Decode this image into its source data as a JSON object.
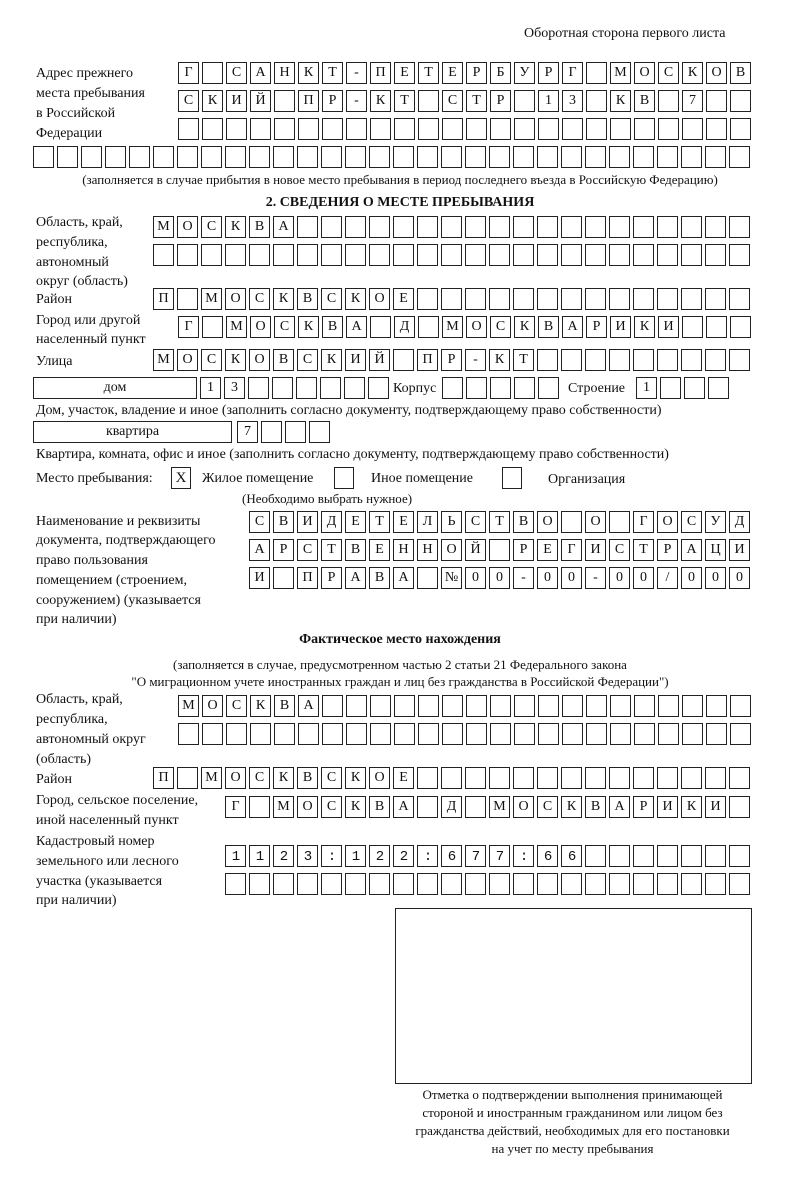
{
  "header": {
    "title": "Оборотная сторона первого листа"
  },
  "previous_address": {
    "label_lines": [
      "Адрес прежнего",
      "места пребывания",
      "в Российской",
      "Федерации"
    ],
    "rows": [
      "Г САНКТ-ПЕТЕРБУРГ МОСКОВ",
      "СКИЙ ПР-КТ СТР 13 КВ 7",
      "",
      ""
    ],
    "note": "(заполняется в случае прибытия в новое место пребывания в период последнего въезда в Российскую Федерацию)"
  },
  "section2": {
    "title": "2. СВЕДЕНИЯ О МЕСТЕ ПРЕБЫВАНИЯ",
    "region_label_lines": [
      "Область, край,",
      "республика,",
      "автономный",
      "округ (область)"
    ],
    "region_rows": [
      "МОСКВА",
      ""
    ],
    "district_label": "Район",
    "district": "П МОСКВСКОЕ",
    "city_label_lines": [
      "Город или другой",
      "населенный пункт"
    ],
    "city": "Г МОСКВА Д МОСКВАРИКИ",
    "street_label": "Улица",
    "street": "МОСКОВСКИЙ ПР-КТ",
    "house_type": "дом",
    "house_number": "13",
    "building_label": "Корпус",
    "building": "",
    "structure_label": "Строение",
    "structure": "1",
    "house_note": "Дом, участок, владение и иное (заполнить согласно документу, подтверждающему право собственности)",
    "apartment_type": "квартира",
    "apartment_number": "7",
    "apartment_note": "Квартира, комната, офис и иное (заполнить согласно документу, подтверждающему право собственности)",
    "stay_place_label": "Место пребывания:",
    "stay_options": [
      {
        "label": "Жилое помещение",
        "checked": true,
        "mark": "X"
      },
      {
        "label": "Иное помещение",
        "checked": false,
        "mark": ""
      },
      {
        "label": "Организация",
        "checked": false,
        "mark": ""
      }
    ],
    "stay_note": "(Необходимо выбрать нужное)",
    "document_label_lines": [
      "Наименование и реквизиты",
      "документа, подтверждающего",
      "право пользования",
      "помещением (строением,",
      "сооружением) (указывается",
      "при наличии)"
    ],
    "document_rows": [
      "СВИДЕТЕЛЬСТВО О ГОСУД",
      "АРСТВЕННОЙ РЕГИСТРАЦИ",
      "И ПРАВА №00-00-00/000"
    ]
  },
  "actual_location": {
    "title": "Фактическое место нахождения",
    "note_lines": [
      "(заполняется в случае, предусмотренном частью 2 статьи 21 Федерального закона",
      "\"О миграционном учете иностранных граждан и лиц без гражданства в Российской Федерации\")"
    ],
    "region_label_lines": [
      "Область, край,",
      "республика,",
      "автономный округ",
      "(область)"
    ],
    "region_rows": [
      "МОСКВА",
      ""
    ],
    "district_label": "Район",
    "district": "П МОСКВСКОЕ",
    "city_label_lines": [
      "Город, сельское поселение,",
      "иной населенный пункт"
    ],
    "city": "Г МОСКВА Д МОСКВАРИКИ",
    "cadastral_label_lines": [
      "Кадастровый номер",
      "земельного или лесного",
      "участка (указывается",
      "при наличии)"
    ],
    "cadastral_rows": [
      "1123:122:677:66",
      ""
    ]
  },
  "confirmation": {
    "caption_lines": [
      "Отметка о подтверждении выполнения принимающей",
      "стороной и иностранным гражданином или лицом без",
      "гражданства действий, необходимых для его постановки",
      "на учет по месту пребывания"
    ]
  }
}
